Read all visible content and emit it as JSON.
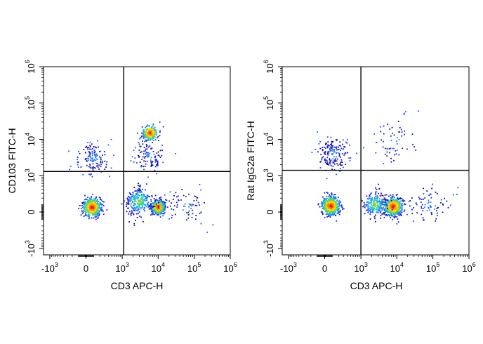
{
  "chart_data": [
    {
      "type": "scatter",
      "subtype": "flow-cytometry-density-dot-plot",
      "title": "",
      "xlabel": "CD3 APC-H",
      "ylabel": "CD103 FITC-H",
      "x_scale": "biexponential",
      "y_scale": "biexponential",
      "xlim": [
        -1500,
        1000000
      ],
      "ylim": [
        -1500,
        1000000
      ],
      "x_ticks": [
        {
          "value": -1000,
          "base": "-10",
          "exp": "3"
        },
        {
          "value": 0,
          "base": "0",
          "exp": ""
        },
        {
          "value": 1000,
          "base": "10",
          "exp": "3"
        },
        {
          "value": 10000,
          "base": "10",
          "exp": "4"
        },
        {
          "value": 100000,
          "base": "10",
          "exp": "5"
        },
        {
          "value": 1000000,
          "base": "10",
          "exp": "6"
        }
      ],
      "y_ticks": [
        {
          "value": -1000,
          "base": "-10",
          "exp": "3"
        },
        {
          "value": 0,
          "base": "0",
          "exp": ""
        },
        {
          "value": 1000,
          "base": "10",
          "exp": "3"
        },
        {
          "value": 10000,
          "base": "10",
          "exp": "4"
        },
        {
          "value": 100000,
          "base": "10",
          "exp": "5"
        },
        {
          "value": 1000000,
          "base": "10",
          "exp": "6"
        }
      ],
      "quadrant_gate": {
        "x": 1100,
        "y": 1300
      },
      "populations": [
        {
          "x": 80,
          "y": 60,
          "spread": 0.22,
          "count": 500,
          "density": "high"
        },
        {
          "x": 10000,
          "y": 60,
          "spread": 0.16,
          "count": 560,
          "density": "high"
        },
        {
          "x": 3000,
          "y": 150,
          "spread": 0.32,
          "count": 280,
          "density": "medium"
        },
        {
          "x": 6000,
          "y": 15000,
          "spread": 0.18,
          "count": 230,
          "density": "high"
        },
        {
          "x": 100,
          "y": 3000,
          "spread": 0.4,
          "count": 140,
          "density": "low"
        },
        {
          "x": 6000,
          "y": 3500,
          "spread": 0.35,
          "count": 110,
          "density": "low"
        },
        {
          "x": 60000,
          "y": 80,
          "spread": 0.5,
          "count": 70,
          "density": "low"
        }
      ],
      "grid": false,
      "legend": "none"
    },
    {
      "type": "scatter",
      "subtype": "flow-cytometry-density-dot-plot",
      "title": "",
      "xlabel": "CD3 APC-H",
      "ylabel": "Rat IgG2a FITC-H",
      "x_scale": "biexponential",
      "y_scale": "biexponential",
      "xlim": [
        -1500,
        1000000
      ],
      "ylim": [
        -1500,
        1000000
      ],
      "x_ticks": [
        {
          "value": -1000,
          "base": "-10",
          "exp": "3"
        },
        {
          "value": 0,
          "base": "0",
          "exp": ""
        },
        {
          "value": 1000,
          "base": "10",
          "exp": "3"
        },
        {
          "value": 10000,
          "base": "10",
          "exp": "4"
        },
        {
          "value": 100000,
          "base": "10",
          "exp": "5"
        },
        {
          "value": 1000000,
          "base": "10",
          "exp": "6"
        }
      ],
      "y_ticks": [
        {
          "value": -1000,
          "base": "-10",
          "exp": "3"
        },
        {
          "value": 0,
          "base": "0",
          "exp": ""
        },
        {
          "value": 1000,
          "base": "10",
          "exp": "3"
        },
        {
          "value": 10000,
          "base": "10",
          "exp": "4"
        },
        {
          "value": 100000,
          "base": "10",
          "exp": "5"
        },
        {
          "value": 1000000,
          "base": "10",
          "exp": "6"
        }
      ],
      "quadrant_gate": {
        "x": 1000,
        "y": 1400
      },
      "populations": [
        {
          "x": 80,
          "y": 80,
          "spread": 0.22,
          "count": 560,
          "density": "high"
        },
        {
          "x": 8000,
          "y": 70,
          "spread": 0.22,
          "count": 640,
          "density": "high"
        },
        {
          "x": 2500,
          "y": 100,
          "spread": 0.3,
          "count": 220,
          "density": "medium"
        },
        {
          "x": 120,
          "y": 4000,
          "spread": 0.4,
          "count": 170,
          "density": "low"
        },
        {
          "x": 10000,
          "y": 8000,
          "spread": 0.55,
          "count": 60,
          "density": "low"
        },
        {
          "x": 80000,
          "y": 90,
          "spread": 0.5,
          "count": 80,
          "density": "low"
        }
      ],
      "grid": false,
      "legend": "none"
    }
  ]
}
